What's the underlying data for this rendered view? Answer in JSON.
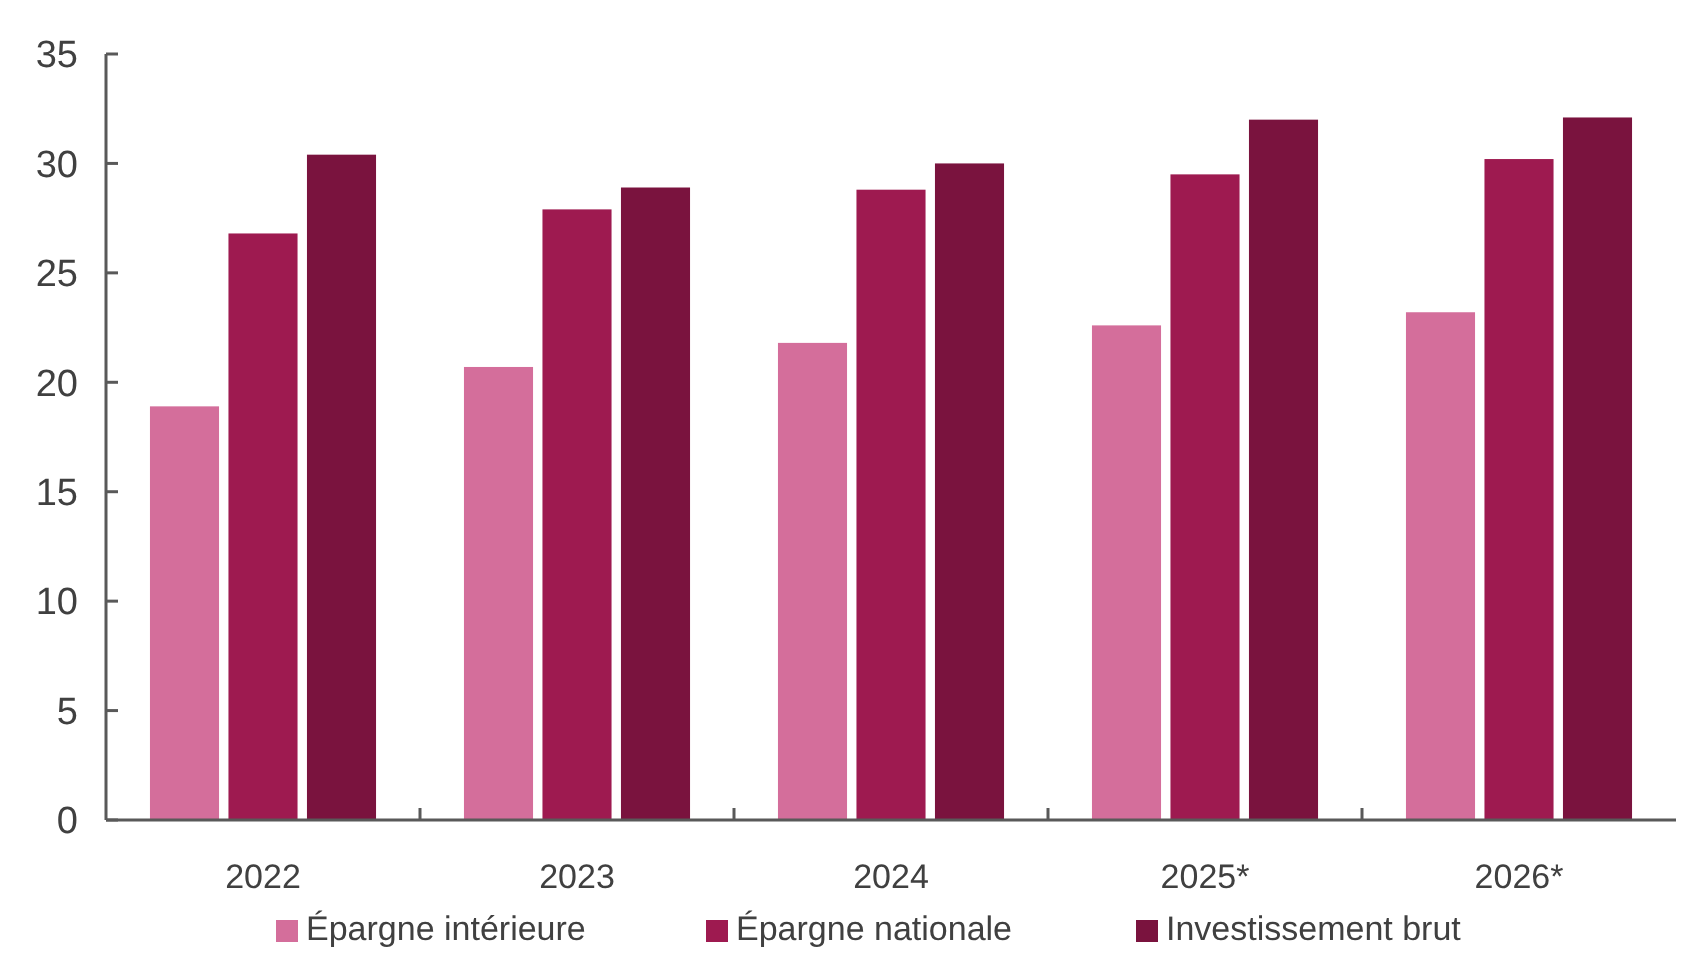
{
  "chart_data": {
    "type": "bar",
    "categories": [
      "2022",
      "2023",
      "2024",
      "2025*",
      "2026*"
    ],
    "series": [
      {
        "name": "Épargne intérieure",
        "color": "#d46e9b",
        "values": [
          18.9,
          20.7,
          21.8,
          22.6,
          23.2
        ]
      },
      {
        "name": "Épargne nationale",
        "color": "#9e1a50",
        "values": [
          26.8,
          27.9,
          28.8,
          29.5,
          30.2
        ]
      },
      {
        "name": "Investissement brut",
        "color": "#7a133e",
        "values": [
          30.4,
          28.9,
          30.0,
          32.0,
          32.1
        ]
      }
    ],
    "ylim": [
      0,
      35
    ],
    "yticks": [
      0,
      5,
      10,
      15,
      20,
      25,
      30,
      35
    ],
    "grid": false,
    "legend": "bottom"
  }
}
